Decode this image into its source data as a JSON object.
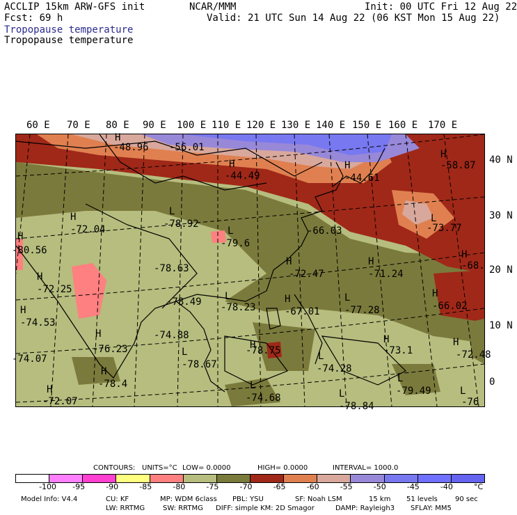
{
  "header": {
    "line1_left": "ACCLIP 15km ARW-GFS init",
    "line1_center": "NCAR/MMM",
    "line1_right": "Init: 00 UTC Fri 12 Aug 22",
    "line2_left": "Fcst:    69 h",
    "line2_right": "Valid: 21 UTC Sun 14 Aug 22 (06 KST Mon 15 Aug 22)",
    "field_title_1": "Tropopause temperature",
    "field_title_2": "Tropopause temperature"
  },
  "lon_labels": [
    "60 E",
    "70 E",
    "80 E",
    "90 E",
    "100 E",
    "110 E",
    "120 E",
    "130 E",
    "140 E",
    "150 E",
    "160 E",
    "170 E"
  ],
  "lat_labels": [
    "40 N",
    "30 N",
    "20 N",
    "10 N",
    "0"
  ],
  "map_labels": [
    {
      "letter": "H",
      "value": "-48.96"
    },
    {
      "letter": "",
      "value": "-56.01"
    },
    {
      "letter": "H",
      "value": "-44.49"
    },
    {
      "letter": "H",
      "value": "-44.61"
    },
    {
      "letter": "H",
      "value": "-58.87"
    },
    {
      "letter": "H",
      "value": "-72.04"
    },
    {
      "letter": "L",
      "value": "-78.92"
    },
    {
      "letter": "L",
      "value": "-79.6"
    },
    {
      "letter": "",
      "value": "-66.03"
    },
    {
      "letter": "L",
      "value": "-73.77"
    },
    {
      "letter": "H",
      "value": "-80.56"
    },
    {
      "letter": "H",
      "value": "-72.25"
    },
    {
      "letter": "",
      "value": "-78.63"
    },
    {
      "letter": "H",
      "value": "-72.47"
    },
    {
      "letter": "H",
      "value": "-71.24"
    },
    {
      "letter": "H",
      "value": "-68."
    },
    {
      "letter": "H",
      "value": "-74.53"
    },
    {
      "letter": "",
      "value": "-78.49"
    },
    {
      "letter": "L",
      "value": "-78.23"
    },
    {
      "letter": "H",
      "value": "-67.01"
    },
    {
      "letter": "L",
      "value": "-77.28"
    },
    {
      "letter": "H",
      "value": "-66.02"
    },
    {
      "letter": "H",
      "value": "-76.23"
    },
    {
      "letter": "",
      "value": "-74.88"
    },
    {
      "letter": "L",
      "value": "-78.67"
    },
    {
      "letter": "H",
      "value": "-78.75"
    },
    {
      "letter": "L",
      "value": "-74.28"
    },
    {
      "letter": "H",
      "value": "-73.1"
    },
    {
      "letter": "H",
      "value": "-72.48"
    },
    {
      "letter": "",
      "value": "-74.07"
    },
    {
      "letter": "H",
      "value": "-78.4"
    },
    {
      "letter": "L",
      "value": "-74.68"
    },
    {
      "letter": "L",
      "value": "-79.49"
    },
    {
      "letter": "H",
      "value": "-72.07"
    },
    {
      "letter": "L",
      "value": "-78.84"
    },
    {
      "letter": "L",
      "value": "-76"
    }
  ],
  "contours": {
    "label": "CONTOURS:",
    "units": "UNITS=°C",
    "low": "LOW=  0.0000",
    "high": "HIGH=  0.0000",
    "interval": "INTERVAL=    1000.0"
  },
  "colorbar": {
    "colors": [
      "#ffffff",
      "#ff80ff",
      "#ff40d0",
      "#ffff80",
      "#ff8080",
      "#b6bd7e",
      "#7a7a3c",
      "#a02818",
      "#e08050",
      "#d8a89c",
      "#9888d8",
      "#7878f0",
      "#7070ff",
      "#6464f0"
    ],
    "ticks": [
      "-100",
      "-95",
      "-90",
      "-85",
      "-80",
      "-75",
      "-70",
      "-65",
      "-60",
      "-55",
      "-50",
      "-45",
      "-40",
      "°C"
    ]
  },
  "footer": {
    "model_info": "Model Info: V4.4",
    "cu": "CU: KF",
    "mp": "MP: WDM 6class",
    "pbl": "PBL: YSU",
    "sf": "SF: Noah LSM",
    "res": "15 km",
    "levels": "51 levels",
    "dt": "90 sec",
    "lw": "LW: RRTMG",
    "sw": "SW: RRTMG",
    "diff": "DIFF: simple KM: 2D Smagor",
    "damp": "DAMP: Rayleigh3",
    "sflay": "SFLAY: MM5"
  }
}
